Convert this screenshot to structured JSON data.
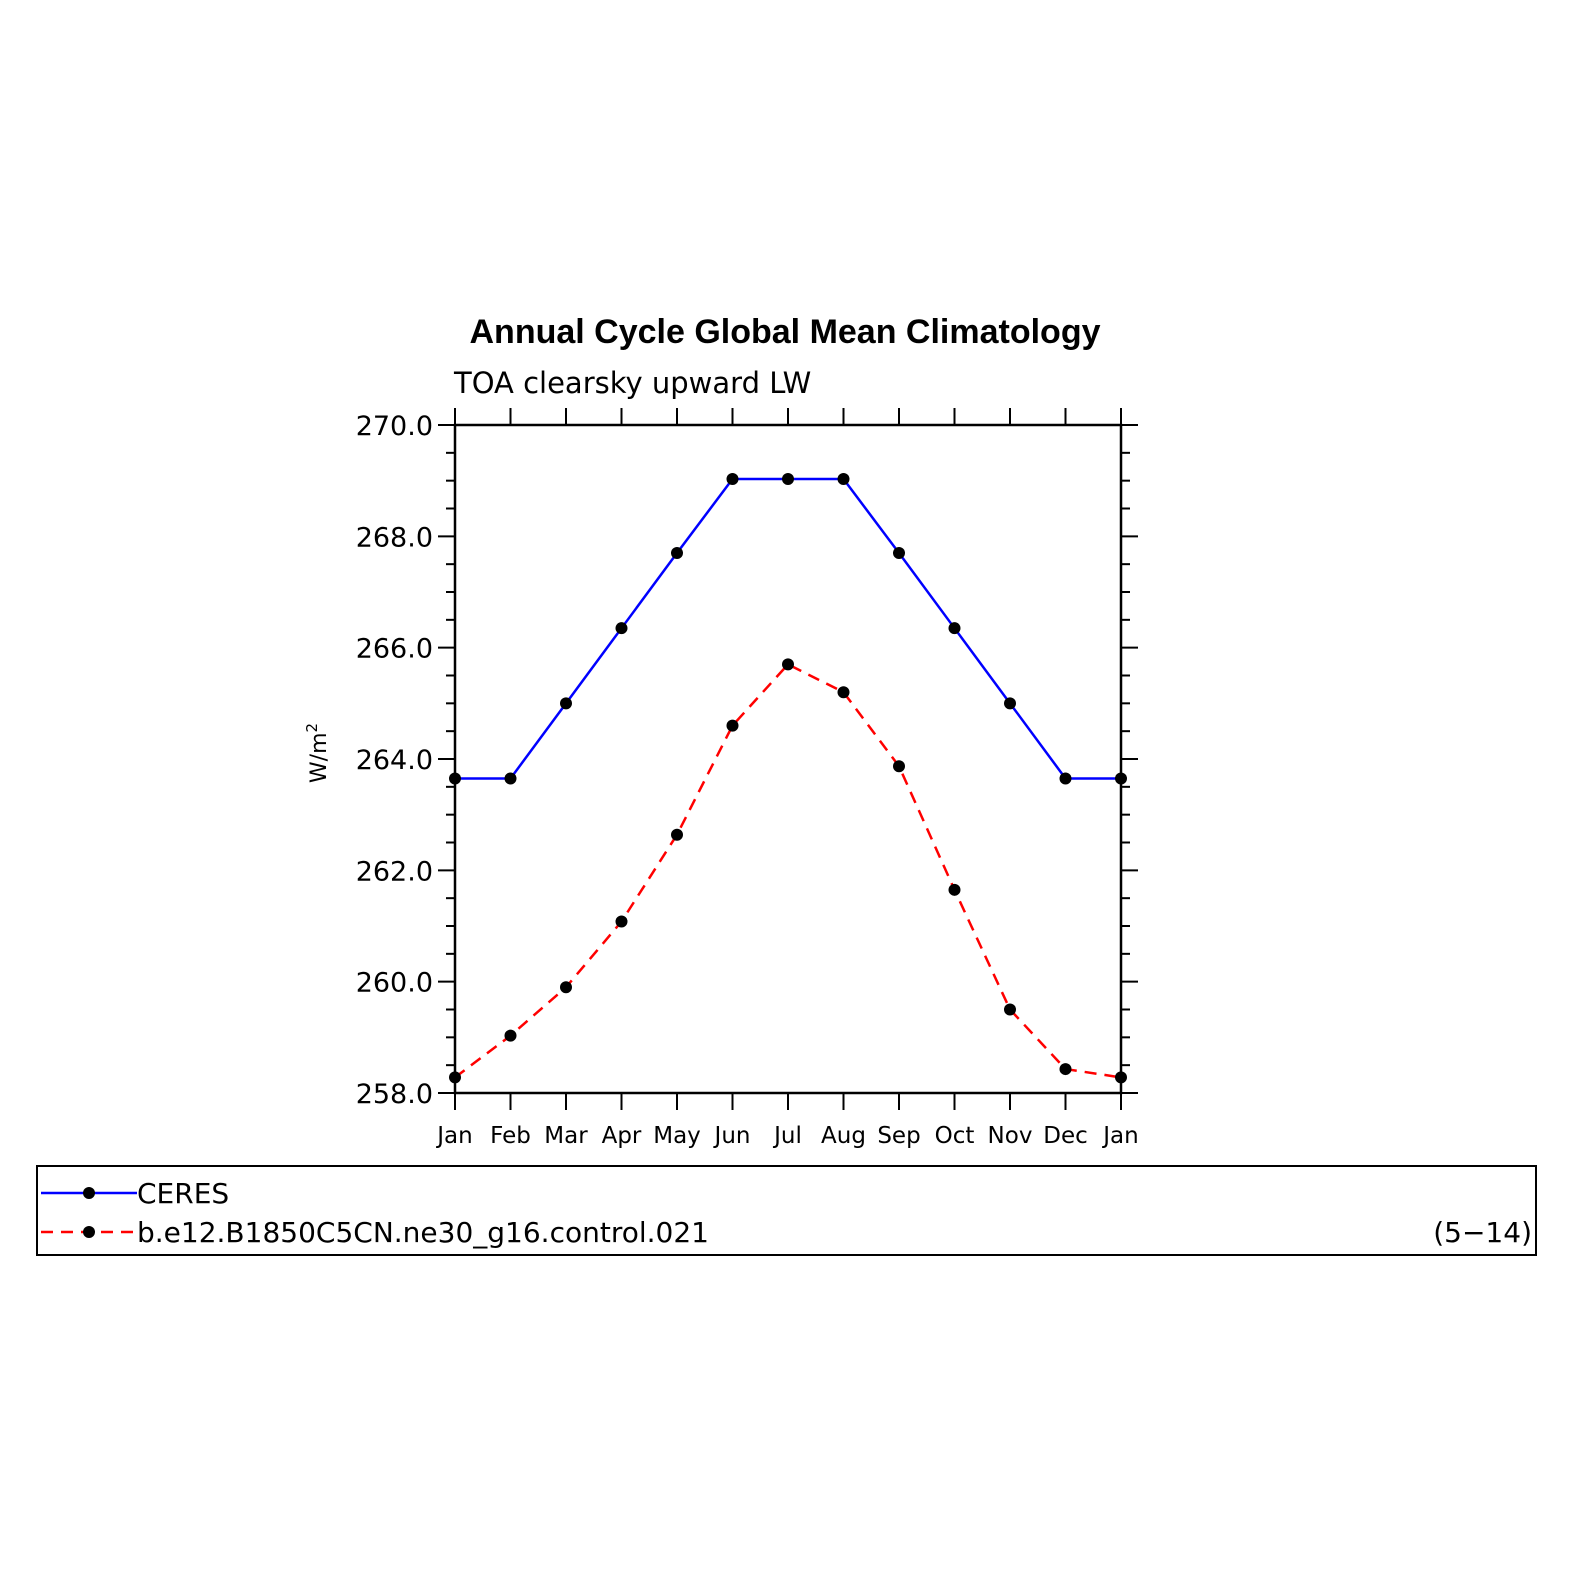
{
  "chart_data": {
    "type": "line",
    "title": "Annual Cycle Global Mean Climatology",
    "subtitle": "TOA clearsky upward LW",
    "xlabel": "",
    "ylabel": "W/m",
    "ylabel_superscript": "2",
    "categories": [
      "Jan",
      "Feb",
      "Mar",
      "Apr",
      "May",
      "Jun",
      "Jul",
      "Aug",
      "Sep",
      "Oct",
      "Nov",
      "Dec",
      "Jan"
    ],
    "ylim": [
      258.0,
      270.0
    ],
    "yticks": [
      "258.0",
      "260.0",
      "262.0",
      "264.0",
      "266.0",
      "268.0",
      "270.0"
    ],
    "grid": false,
    "legend_position": "bottom",
    "series": [
      {
        "name": "CERES",
        "color": "#0000ff",
        "dash": "solid",
        "marker": "circle",
        "values": [
          263.65,
          263.65,
          265.0,
          266.35,
          267.7,
          269.03,
          269.03,
          269.03,
          267.7,
          266.35,
          265.0,
          263.65,
          263.65
        ]
      },
      {
        "name": "b.e12.B1850C5CN.ne30_g16.control.021",
        "color": "#ff0000",
        "dash": "dashed",
        "marker": "circle",
        "values": [
          258.28,
          259.03,
          259.9,
          261.08,
          262.64,
          264.6,
          265.7,
          265.2,
          263.87,
          261.65,
          259.5,
          258.43,
          258.28
        ]
      }
    ],
    "legend_note": "(5−14)"
  }
}
